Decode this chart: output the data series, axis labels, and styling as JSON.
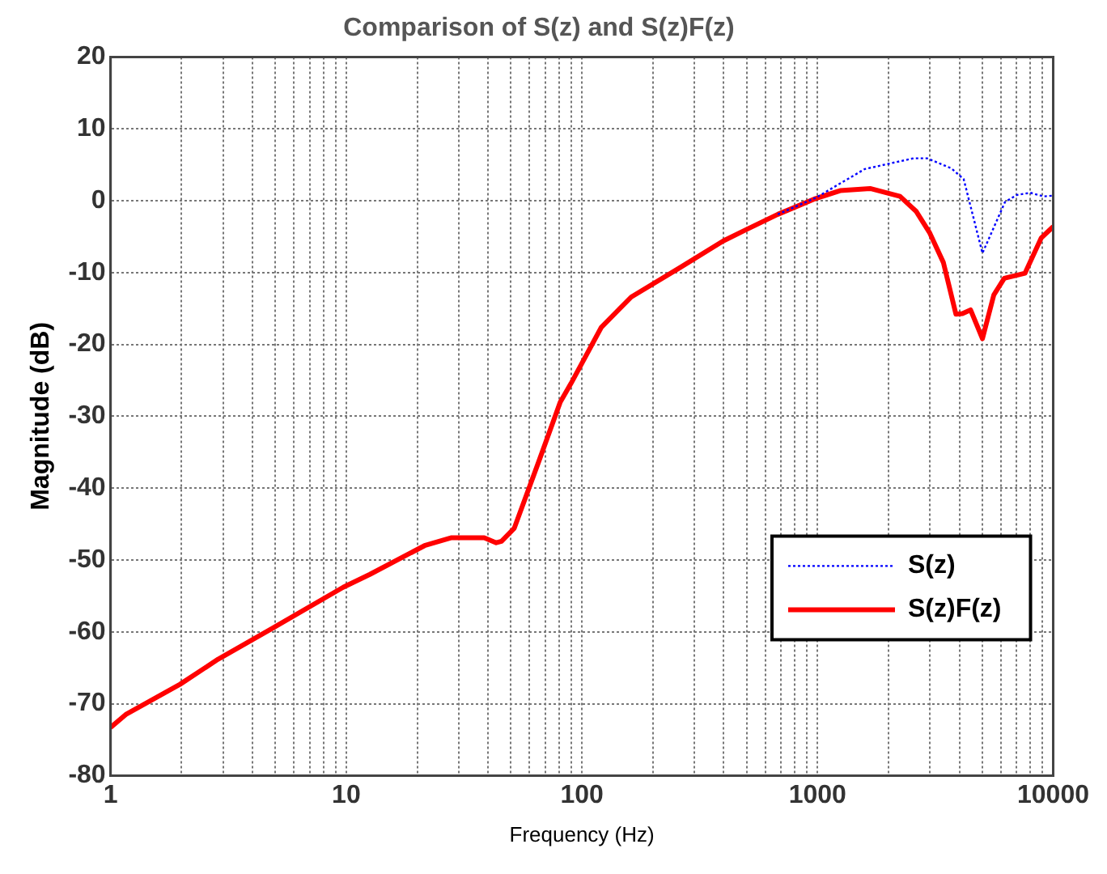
{
  "chart_data": {
    "type": "line",
    "title": "Comparison of S(z) and S(z)F(z)",
    "xlabel": "Frequency (Hz)",
    "ylabel": "Magnitude (dB)",
    "log": "x",
    "grid": true,
    "legend": "bottom right",
    "marker": "none",
    "xlim": [
      1,
      10000
    ],
    "ylim": [
      -80,
      20
    ],
    "xticks": [
      1,
      {
        "value": 2,
        "label": null
      },
      {
        "value": 3,
        "label": null
      },
      {
        "value": 4,
        "label": null
      },
      {
        "value": 5,
        "label": null
      },
      {
        "value": 6,
        "label": null
      },
      {
        "value": 7,
        "label": null
      },
      {
        "value": 8,
        "label": null
      },
      {
        "value": 9,
        "label": null
      },
      10,
      {
        "value": 20,
        "label": null
      },
      {
        "value": 30,
        "label": null
      },
      {
        "value": 40,
        "label": null
      },
      {
        "value": 50,
        "label": null
      },
      {
        "value": 60,
        "label": null
      },
      {
        "value": 70,
        "label": null
      },
      {
        "value": 80,
        "label": null
      },
      {
        "value": 90,
        "label": null
      },
      100,
      {
        "value": 200,
        "label": null
      },
      {
        "value": 300,
        "label": null
      },
      {
        "value": 400,
        "label": null
      },
      {
        "value": 500,
        "label": null
      },
      {
        "value": 600,
        "label": null
      },
      {
        "value": 700,
        "label": null
      },
      {
        "value": 800,
        "label": null
      },
      {
        "value": 900,
        "label": null
      },
      1000,
      {
        "value": 2000,
        "label": null
      },
      {
        "value": 3000,
        "label": null
      },
      {
        "value": 4000,
        "label": null
      },
      {
        "value": 5000,
        "label": null
      },
      {
        "value": 6000,
        "label": null
      },
      {
        "value": 7000,
        "label": null
      },
      {
        "value": 8000,
        "label": null
      },
      {
        "value": 9000,
        "label": null
      },
      10000
    ],
    "yticks": [
      -80,
      -70,
      -60,
      -50,
      -40,
      -30,
      -20,
      -10,
      0,
      10,
      20
    ],
    "series": [
      {
        "name": "S(z)",
        "color": "#0000ff",
        "line_style": "dotted",
        "x": [
          678,
          982,
          1585,
          2553,
          2917,
          3700,
          4170,
          5010,
          6240,
          7000,
          8000,
          9120,
          10000
        ],
        "values": [
          -1.9,
          0.4,
          4.4,
          5.9,
          5.9,
          4.5,
          3.0,
          -7.3,
          -0.2,
          0.8,
          1.1,
          0.6,
          0.7
        ]
      },
      {
        "name": "S(z)F(z)",
        "color": "#ff0000",
        "line_style": "solid",
        "x": [
          1,
          1.16,
          1.97,
          2.86,
          4.86,
          9.7,
          12.6,
          21.5,
          28,
          38.5,
          43.3,
          45.6,
          51.6,
          65.6,
          81,
          90,
          121,
          162,
          261,
          398,
          493,
          678,
          982,
          1247,
          1671,
          2239,
          2624,
          2994,
          3420,
          3866,
          4120,
          4460,
          5010,
          5600,
          6200,
          7590,
          8890,
          10000
        ],
        "values": [
          -73.3,
          -71.5,
          -67.3,
          -63.8,
          -59.5,
          -53.8,
          -52,
          -48,
          -46.9,
          -46.9,
          -47.6,
          -47.4,
          -45.6,
          -36.3,
          -28,
          -25.4,
          -17.6,
          -13.4,
          -9.3,
          -5.6,
          -4.1,
          -1.9,
          0.3,
          1.4,
          1.7,
          0.6,
          -1.5,
          -4.5,
          -8.6,
          -15.8,
          -15.7,
          -15.2,
          -19.2,
          -13.1,
          -10.8,
          -10.1,
          -5.2,
          -3.6
        ]
      }
    ]
  }
}
